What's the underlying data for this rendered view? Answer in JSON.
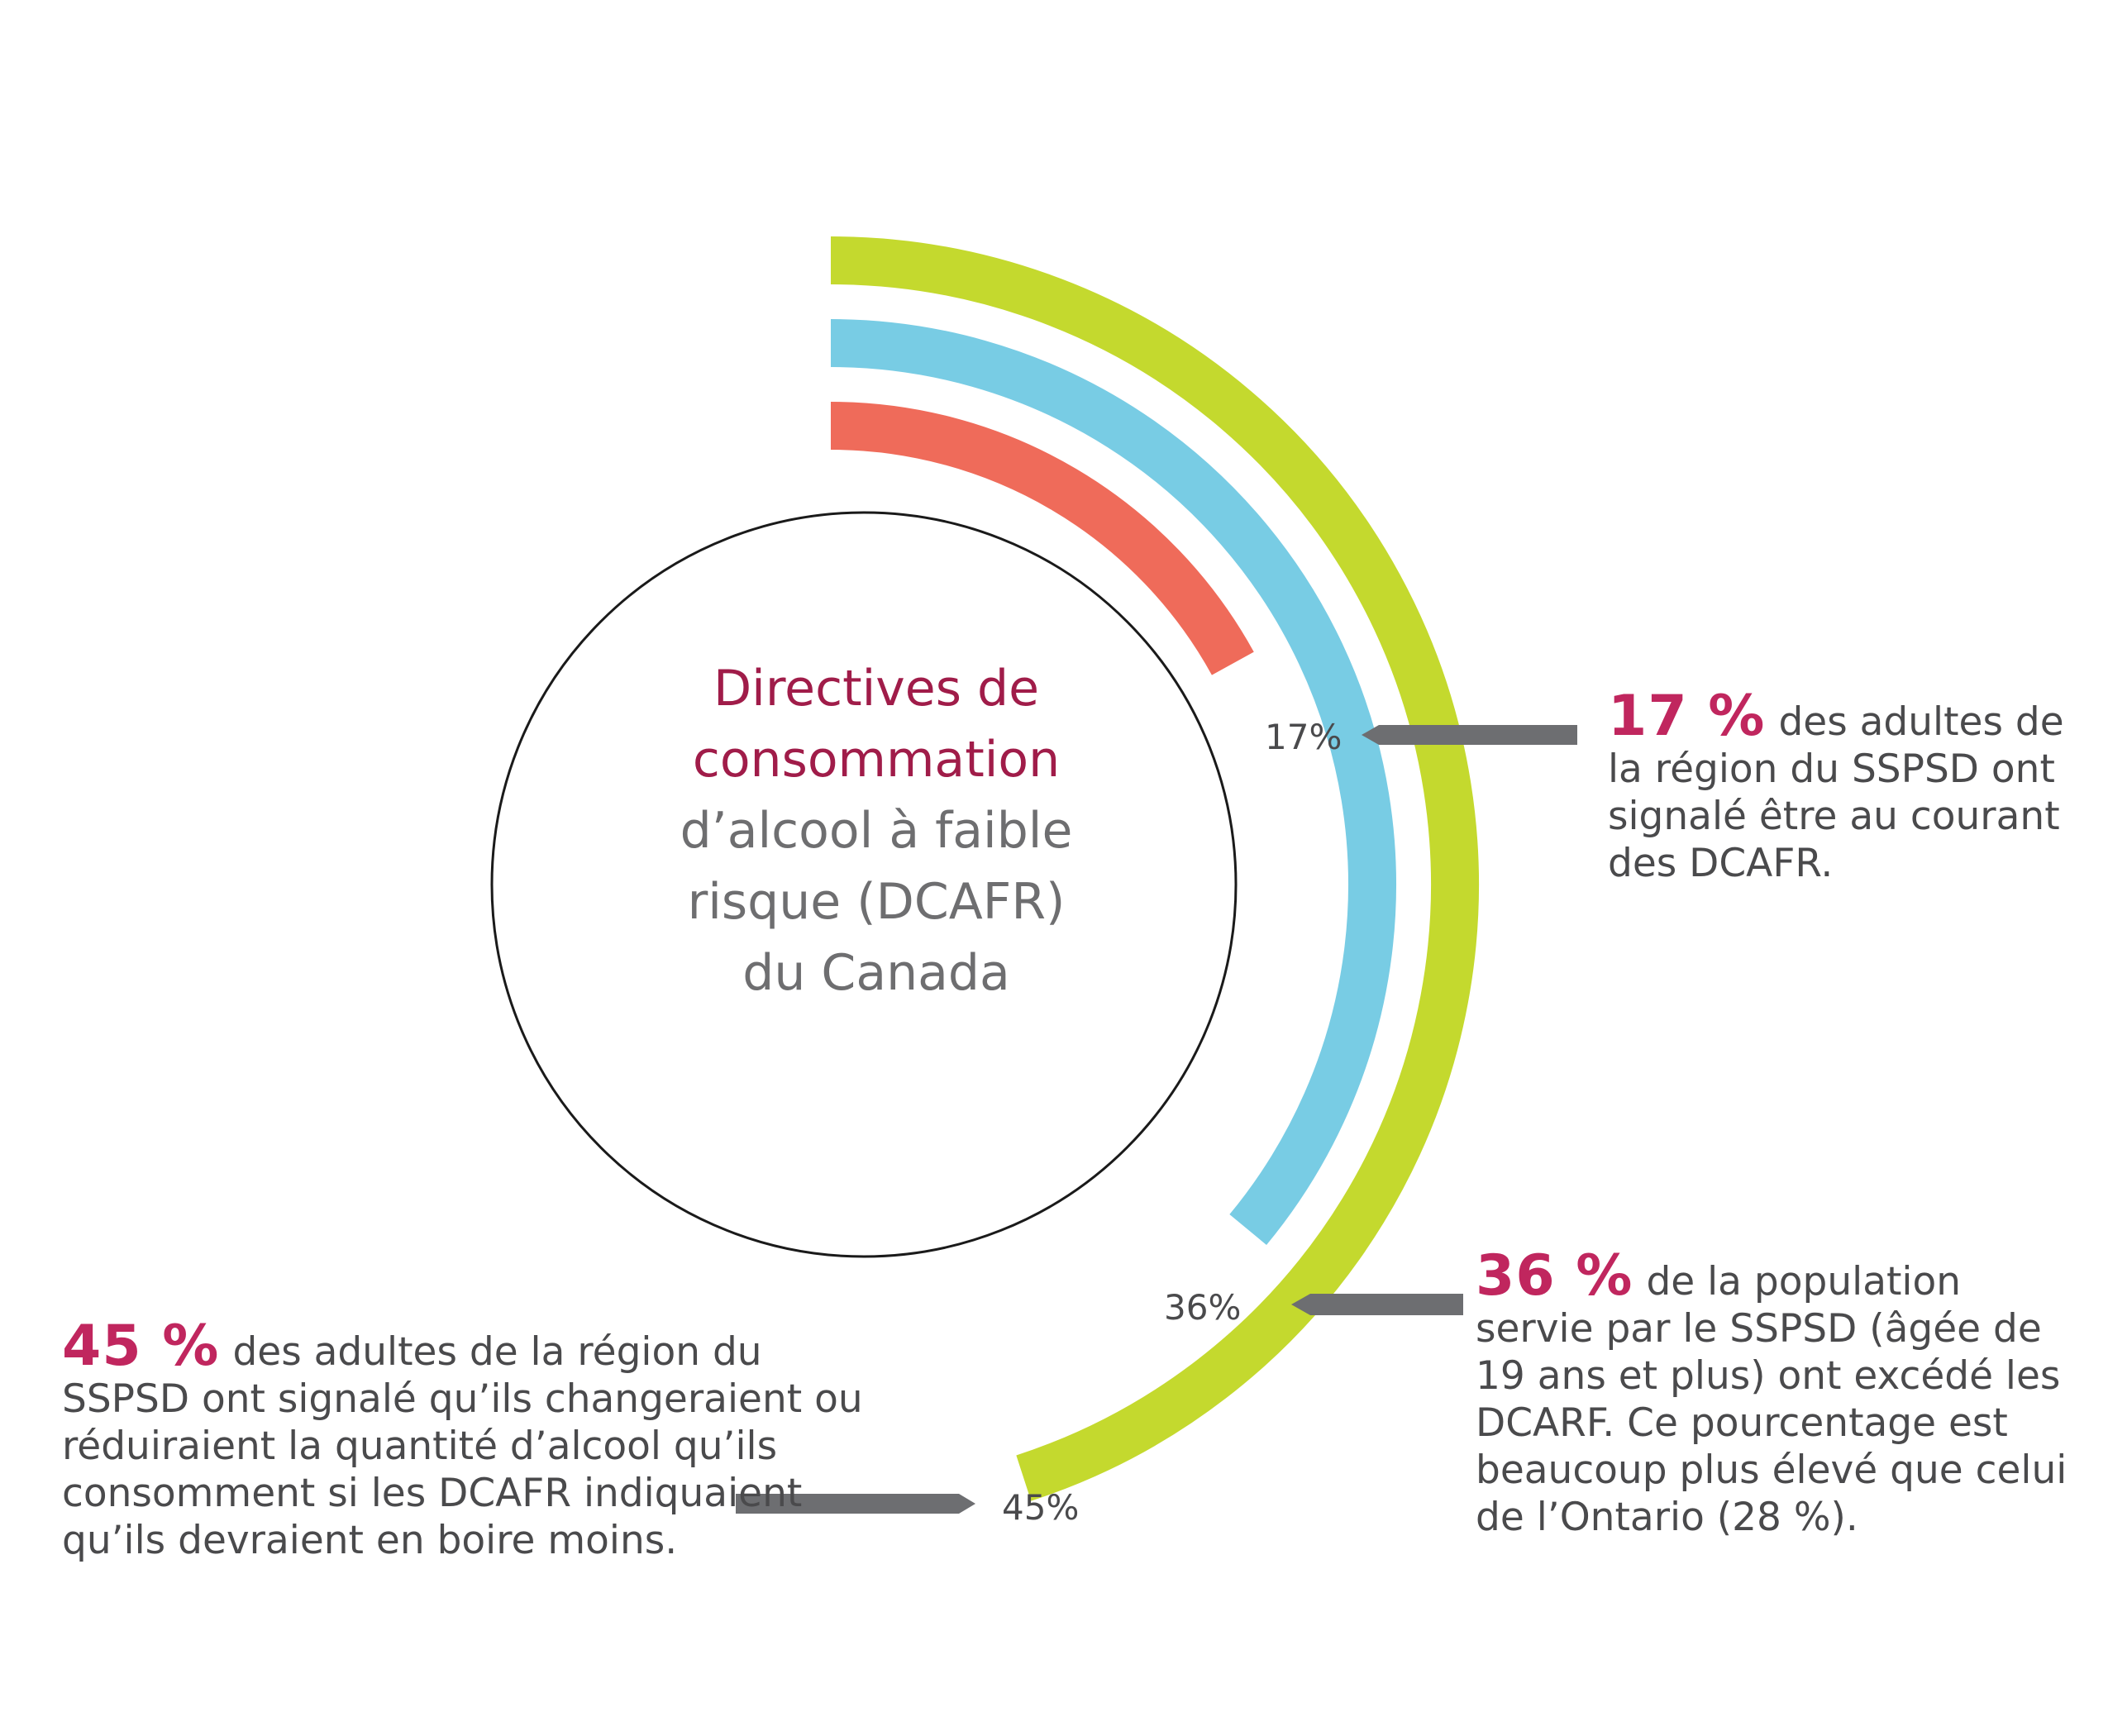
{
  "center": {
    "line1": "Directives de",
    "line2": "consommation",
    "line3": "d’alcool à faible",
    "line4": "risque (DCAFR)",
    "line5": "du Canada"
  },
  "chart_data": {
    "type": "radial-bar",
    "unit": "%",
    "series": [
      {
        "value": 17,
        "label": "17%",
        "color": "#ef6b5a"
      },
      {
        "value": 36,
        "label": "36%",
        "color": "#78cce4"
      },
      {
        "value": 45,
        "label": "45%",
        "color": "#c4d92e"
      }
    ]
  },
  "callouts": {
    "c17": {
      "value": "17 %",
      "text": "des adultes de la région du SSPSD ont signalé être au courant des DCAFR."
    },
    "c36": {
      "value": "36 %",
      "text": "de la population servie par le SSPSD (âgée de 19 ans et plus) ont excédé les DCARF. Ce pourcentage est beaucoup plus élevé que celui de l’Ontario (28 %)."
    },
    "c45": {
      "value": "45 %",
      "text": "des adultes de la région du SSPSD ont signalé qu’ils changeraient ou réduiraient la quantité d’alcool qu’ils consomment si les DCAFR indiquaient qu’ils devraient en boire moins."
    }
  },
  "colors": {
    "accent": "#a01c49",
    "value_highlight": "#c0265e",
    "grey_text": "#6e6e70",
    "pointer": "#6d6e71"
  }
}
